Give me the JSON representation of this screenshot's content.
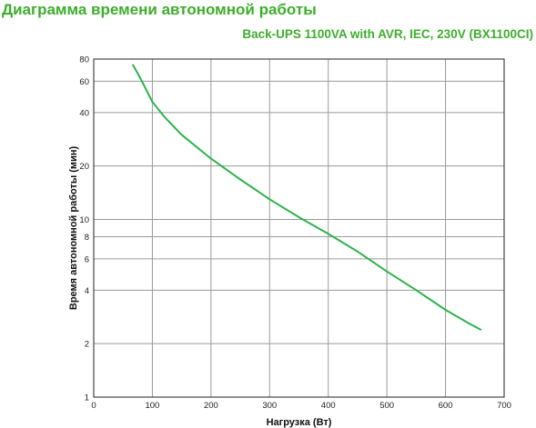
{
  "header": {
    "title": "Диаграмма времени автономной работы",
    "subtitle": "Back-UPS 1100VA with AVR, IEC, 230V (BX1100CI)"
  },
  "colors": {
    "accent": "#3dae2b",
    "series": "#2db24a",
    "grid": "#9a9a9a"
  },
  "chart_data": {
    "type": "line",
    "xlabel": "Нагрузка (Вт)",
    "ylabel": "Время автономной работы (мин)",
    "xlim": [
      0,
      700
    ],
    "ylim": [
      1,
      80
    ],
    "yscale": "log",
    "xticks": [
      "0",
      "100",
      "200",
      "300",
      "400",
      "500",
      "600",
      "700"
    ],
    "yticks": [
      "1",
      "2",
      "4",
      "6",
      "8",
      "10",
      "20",
      "40",
      "60",
      "80"
    ],
    "grid": true,
    "legend": "none",
    "series": [
      {
        "x": [
          67,
          80,
          100,
          120,
          150,
          200,
          250,
          300,
          350,
          400,
          450,
          500,
          550,
          600,
          640,
          660
        ],
        "y": [
          74,
          62,
          46,
          38,
          30,
          22,
          16.8,
          13,
          10.3,
          8.3,
          6.6,
          5.1,
          4.0,
          3.1,
          2.6,
          2.4
        ]
      }
    ]
  }
}
